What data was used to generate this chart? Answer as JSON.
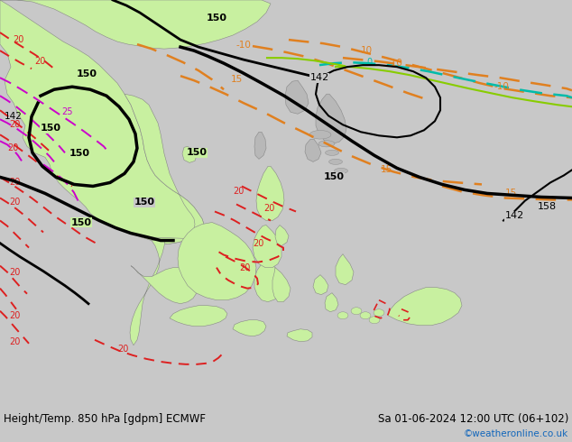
{
  "title_left": "Height/Temp. 850 hPa [gdpm] ECMWF",
  "title_right": "Sa 01-06-2024 12:00 UTC (06+102)",
  "credit": "©weatheronline.co.uk",
  "bg_color": "#c8c8c8",
  "land_green": "#c8f0a0",
  "land_green2": "#b0e880",
  "gray_land": "#b8b8b8",
  "bottom_bg": "#e0e0e0",
  "orange": "#e08020",
  "red": "#dd2020",
  "magenta": "#cc00cc",
  "cyan": "#00bbaa",
  "lime": "#88cc00",
  "black": "#000000",
  "title_fontsize": 8.5,
  "credit_color": "#1166bb",
  "credit_fontsize": 7.5,
  "figsize": [
    6.34,
    4.9
  ],
  "dpi": 100
}
